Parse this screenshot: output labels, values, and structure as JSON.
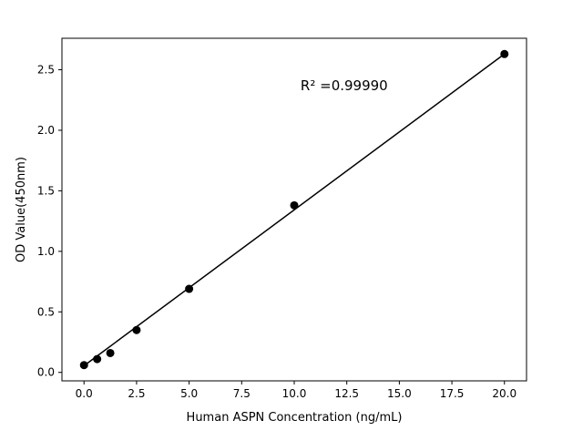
{
  "chart_data": {
    "type": "scatter",
    "title": "",
    "xlabel": "Human ASPN Concentration (ng/mL)",
    "ylabel": "OD Value(450nm)",
    "x": [
      0,
      0.625,
      1.25,
      2.5,
      5,
      10,
      20
    ],
    "y": [
      0.06,
      0.11,
      0.16,
      0.35,
      0.69,
      1.38,
      2.63
    ],
    "fit_line": {
      "x": [
        0,
        20
      ],
      "y": [
        0.055,
        2.63
      ]
    },
    "xlim": [
      -1.05,
      21.05
    ],
    "ylim": [
      -0.07,
      2.76
    ],
    "xticks": [
      0,
      2.5,
      5,
      7.5,
      10,
      12.5,
      15,
      17.5,
      20
    ],
    "xtick_labels": [
      "0.0",
      "2.5",
      "5.0",
      "7.5",
      "10.0",
      "12.5",
      "15.0",
      "17.5",
      "20.0"
    ],
    "yticks": [
      0,
      0.5,
      1,
      1.5,
      2,
      2.5
    ],
    "ytick_labels": [
      "0.0",
      "0.5",
      "1.0",
      "1.5",
      "2.0",
      "2.5"
    ],
    "annotation": {
      "text": "R² =0.99990",
      "x": 10.3,
      "y": 2.33
    },
    "grid": false,
    "legend": null,
    "marker_color": "#000000",
    "line_color": "#000000",
    "background": "#ffffff"
  }
}
